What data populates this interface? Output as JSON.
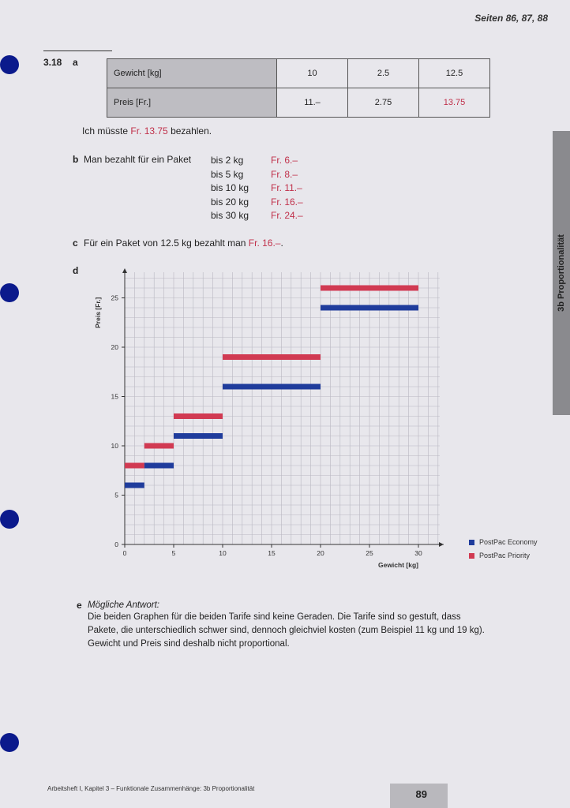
{
  "header": {
    "pages": "Seiten 86, 87, 88"
  },
  "exercise": {
    "number": "3.18",
    "a_label": "a",
    "b_label": "b",
    "c_label": "c",
    "d_label": "d",
    "e_label": "e"
  },
  "table": {
    "row1": {
      "label": "Gewicht [kg]",
      "values": [
        "10",
        "2.5",
        "12.5"
      ]
    },
    "row2": {
      "label": "Preis [Fr.]",
      "values": [
        "11.–",
        "2.75",
        "13.75"
      ]
    }
  },
  "part_a": {
    "prefix": "Ich müsste ",
    "answer": "Fr. 13.75",
    "suffix": " bezahlen."
  },
  "part_b": {
    "intro": "Man bezahlt für ein Paket",
    "rows": [
      {
        "weight": "bis 2 kg",
        "price": "Fr. 6.–"
      },
      {
        "weight": "bis 5 kg",
        "price": "Fr. 8.–"
      },
      {
        "weight": "bis 10 kg",
        "price": "Fr. 11.–"
      },
      {
        "weight": "bis 20 kg",
        "price": "Fr. 16.–"
      },
      {
        "weight": "bis 30 kg",
        "price": "Fr. 24.–"
      }
    ]
  },
  "part_c": {
    "prefix": "Für ein Paket von 12.5 kg bezahlt man ",
    "answer": "Fr. 16.–",
    "suffix": "."
  },
  "part_e": {
    "heading": "Mögliche Antwort:",
    "lines": [
      "Die beiden Graphen für die beiden Tarife sind keine Geraden. Die Tarife sind so gestuft, dass",
      "Pakete, die unterschiedlich schwer sind, dennoch gleichviel kosten (zum Beispiel 11 kg und 19 kg).",
      "Gewicht und Preis sind deshalb nicht proportional."
    ]
  },
  "side_tab": "3b Proportionalität",
  "footer": {
    "text": "Arbeitsheft I, Kapitel 3 – Funktionale Zusammenhänge: 3b Proportionalität",
    "page_number": "89"
  },
  "colors": {
    "economy": "#1f3c9c",
    "priority": "#d13a52",
    "grid": "#b9b8c2"
  },
  "chart_data": {
    "type": "step",
    "xlabel": "Gewicht [kg]",
    "ylabel": "Preis [Fr.]",
    "xlim": [
      0,
      30
    ],
    "ylim": [
      0,
      26
    ],
    "x_ticks": [
      "0",
      "5",
      "10",
      "15",
      "20",
      "25",
      "30"
    ],
    "y_ticks": [
      "0",
      "5",
      "10",
      "15",
      "20",
      "25"
    ],
    "grid": true,
    "legend_position": "right",
    "series": [
      {
        "name": "PostPac Economy",
        "segments": [
          [
            0,
            2,
            6
          ],
          [
            2,
            5,
            8
          ],
          [
            5,
            10,
            11
          ],
          [
            10,
            20,
            16
          ],
          [
            20,
            30,
            24
          ]
        ]
      },
      {
        "name": "PostPac Priority",
        "segments": [
          [
            0,
            2,
            8
          ],
          [
            2,
            5,
            10
          ],
          [
            5,
            10,
            13
          ],
          [
            10,
            20,
            19
          ],
          [
            20,
            30,
            26
          ]
        ]
      }
    ]
  }
}
